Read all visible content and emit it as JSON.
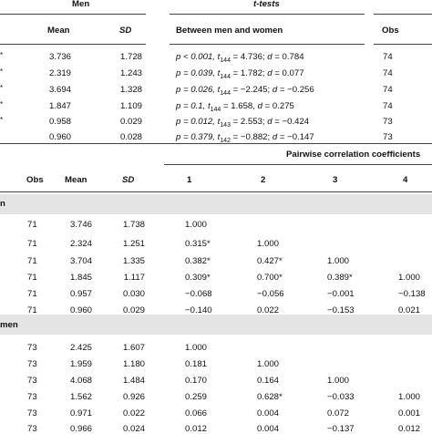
{
  "top": {
    "headers": {
      "men": "Men",
      "ttests": "t-tests",
      "mean": "Mean",
      "sd": "SD",
      "between": "Between men and women",
      "obs": "Obs"
    },
    "rows": [
      {
        "mean": "3.736",
        "sd": "1.728",
        "p": "p < 0.001, ",
        "t": "t",
        "tsub": "144",
        "rest": " = 4.736; ",
        "d": "d",
        "dval": " = 0.784",
        "obs": "74",
        "star": "*"
      },
      {
        "mean": "2.319",
        "sd": "1.243",
        "p": "p = 0.039, ",
        "t": "t",
        "tsub": "144",
        "rest": " = 1.782; ",
        "d": "d",
        "dval": " = 0.077",
        "obs": "74",
        "star": "*"
      },
      {
        "mean": "3.694",
        "sd": "1.328",
        "p": "p = 0.026, ",
        "t": "t",
        "tsub": "144",
        "rest": " = −2.245; ",
        "d": "d",
        "dval": " = −0.256",
        "obs": "74",
        "star": "*"
      },
      {
        "mean": "1.847",
        "sd": "1.109",
        "p": "p = 0.1, ",
        "t": "t",
        "tsub": "144",
        "rest": " = 1.658, ",
        "d": "d",
        "dval": " = 0.275",
        "obs": "74",
        "star": "*"
      },
      {
        "mean": "0.958",
        "sd": "0.029",
        "p": "p = 0.012, ",
        "t": "t",
        "tsub": "143",
        "rest": " = 2.553; ",
        "d": "d",
        "dval": " = −0.424",
        "obs": "73",
        "star": "*"
      },
      {
        "mean": "0.960",
        "sd": "0.028",
        "p": "p = 0.379, ",
        "t": "t",
        "tsub": "142",
        "rest": " = −0.882; ",
        "d": "d",
        "dval": " = −0.147",
        "obs": "73",
        "star": ""
      }
    ]
  },
  "bottom": {
    "headers": {
      "pairwise": "Pairwise correlation coefficients",
      "obs": "Obs",
      "mean": "Mean",
      "sd": "SD",
      "c1": "1",
      "c2": "2",
      "c3": "3",
      "c4": "4"
    },
    "men_label": "n",
    "women_label": "men",
    "men_rows": [
      {
        "obs": "71",
        "mean": "3.746",
        "sd": "1.738",
        "c1": "1.000",
        "c2": "",
        "c3": "",
        "c4": ""
      },
      {
        "obs": "71",
        "mean": "2.324",
        "sd": "1.251",
        "c1": "0.315*",
        "c2": "1.000",
        "c3": "",
        "c4": ""
      },
      {
        "obs": "71",
        "mean": "3.704",
        "sd": "1.335",
        "c1": "0.382*",
        "c2": "0.427*",
        "c3": "1.000",
        "c4": ""
      },
      {
        "obs": "71",
        "mean": "1.845",
        "sd": "1.117",
        "c1": "0.309*",
        "c2": "0.700*",
        "c3": "0.389*",
        "c4": "1.000"
      },
      {
        "obs": "71",
        "mean": "0.957",
        "sd": "0.030",
        "c1": "−0.068",
        "c2": "−0.056",
        "c3": "−0.001",
        "c4": "−0.138"
      },
      {
        "obs": "71",
        "mean": "0.960",
        "sd": "0.029",
        "c1": "−0.140",
        "c2": "0.022",
        "c3": "−0.153",
        "c4": "0.021"
      }
    ],
    "women_rows": [
      {
        "obs": "73",
        "mean": "2.425",
        "sd": "1.607",
        "c1": "1.000",
        "c2": "",
        "c3": "",
        "c4": ""
      },
      {
        "obs": "73",
        "mean": "1.959",
        "sd": "1.180",
        "c1": "0.181",
        "c2": "1.000",
        "c3": "",
        "c4": ""
      },
      {
        "obs": "73",
        "mean": "4.068",
        "sd": "1.484",
        "c1": "0.170",
        "c2": "0.164",
        "c3": "1.000",
        "c4": ""
      },
      {
        "obs": "73",
        "mean": "1.562",
        "sd": "0.926",
        "c1": "0.259",
        "c2": "0.628*",
        "c3": "−0.033",
        "c4": "1.000"
      },
      {
        "obs": "73",
        "mean": "0.971",
        "sd": "0.022",
        "c1": "0.066",
        "c2": "0.004",
        "c3": "0.072",
        "c4": "0.001"
      },
      {
        "obs": "73",
        "mean": "0.966",
        "sd": "0.024",
        "c1": "0.012",
        "c2": "0.004",
        "c3": "−0.137",
        "c4": "0.012"
      }
    ]
  }
}
